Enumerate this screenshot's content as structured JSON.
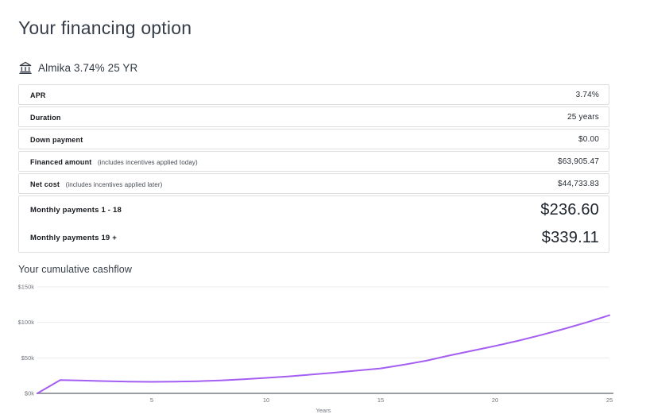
{
  "page": {
    "title": "Your financing option"
  },
  "provider": {
    "icon": "bank-icon",
    "label": "Almika 3.74% 25 YR"
  },
  "table": {
    "rows": [
      {
        "label": "APR",
        "note": "",
        "value": "3.74%"
      },
      {
        "label": "Duration",
        "note": "",
        "value": "25 years"
      },
      {
        "label": "Down payment",
        "note": "",
        "value": "$0.00"
      },
      {
        "label": "Financed amount",
        "note": "(includes incentives applied today)",
        "value": "$63,905.47"
      },
      {
        "label": "Net cost",
        "note": "(includes incentives applied later)",
        "value": "$44,733.83"
      }
    ],
    "payment_rows": [
      {
        "label": "Monthly payments 1 - 18",
        "value": "$236.60"
      },
      {
        "label": "Monthly payments 19 +",
        "value": "$339.11"
      }
    ]
  },
  "cashflow": {
    "heading": "Your cumulative cashflow"
  },
  "chart_data": {
    "type": "line",
    "title": "Your cumulative cashflow",
    "xlabel": "Years",
    "ylabel": "",
    "xlim": [
      0,
      25
    ],
    "ylim_k": [
      0,
      150
    ],
    "x": [
      0,
      1,
      2,
      3,
      4,
      5,
      6,
      7,
      8,
      9,
      10,
      11,
      12,
      13,
      14,
      15,
      16,
      17,
      18,
      19,
      20,
      21,
      22,
      23,
      24,
      25
    ],
    "values_k": [
      0,
      18.8,
      18.0,
      17.2,
      16.6,
      16.2,
      16.5,
      17.1,
      18.2,
      19.9,
      21.8,
      24.0,
      26.5,
      29.2,
      32.1,
      35.2,
      40.3,
      46.0,
      53.3,
      60.0,
      66.7,
      74.0,
      82.0,
      90.7,
      100.0,
      110.0
    ],
    "x_ticks": [
      {
        "label": "5",
        "value": 5
      },
      {
        "label": "10",
        "value": 10
      },
      {
        "label": "15",
        "value": 15
      },
      {
        "label": "20",
        "value": 20
      },
      {
        "label": "25",
        "value": 25
      }
    ],
    "y_ticks": [
      {
        "label": "$0k",
        "value_k": 0
      },
      {
        "label": "$50k",
        "value_k": 50
      },
      {
        "label": "$100k",
        "value_k": 100
      },
      {
        "label": "$150k",
        "value_k": 150
      }
    ],
    "grid": true,
    "legend": "none",
    "line_color": "#a45ef2",
    "grid_color": "#ececec",
    "axis_color": "#9a9da1",
    "tick_color": "#70757d"
  },
  "colors": {
    "heading_text": "#353e48",
    "row_border": "#dedede",
    "accent_line": "#a45ef2"
  }
}
